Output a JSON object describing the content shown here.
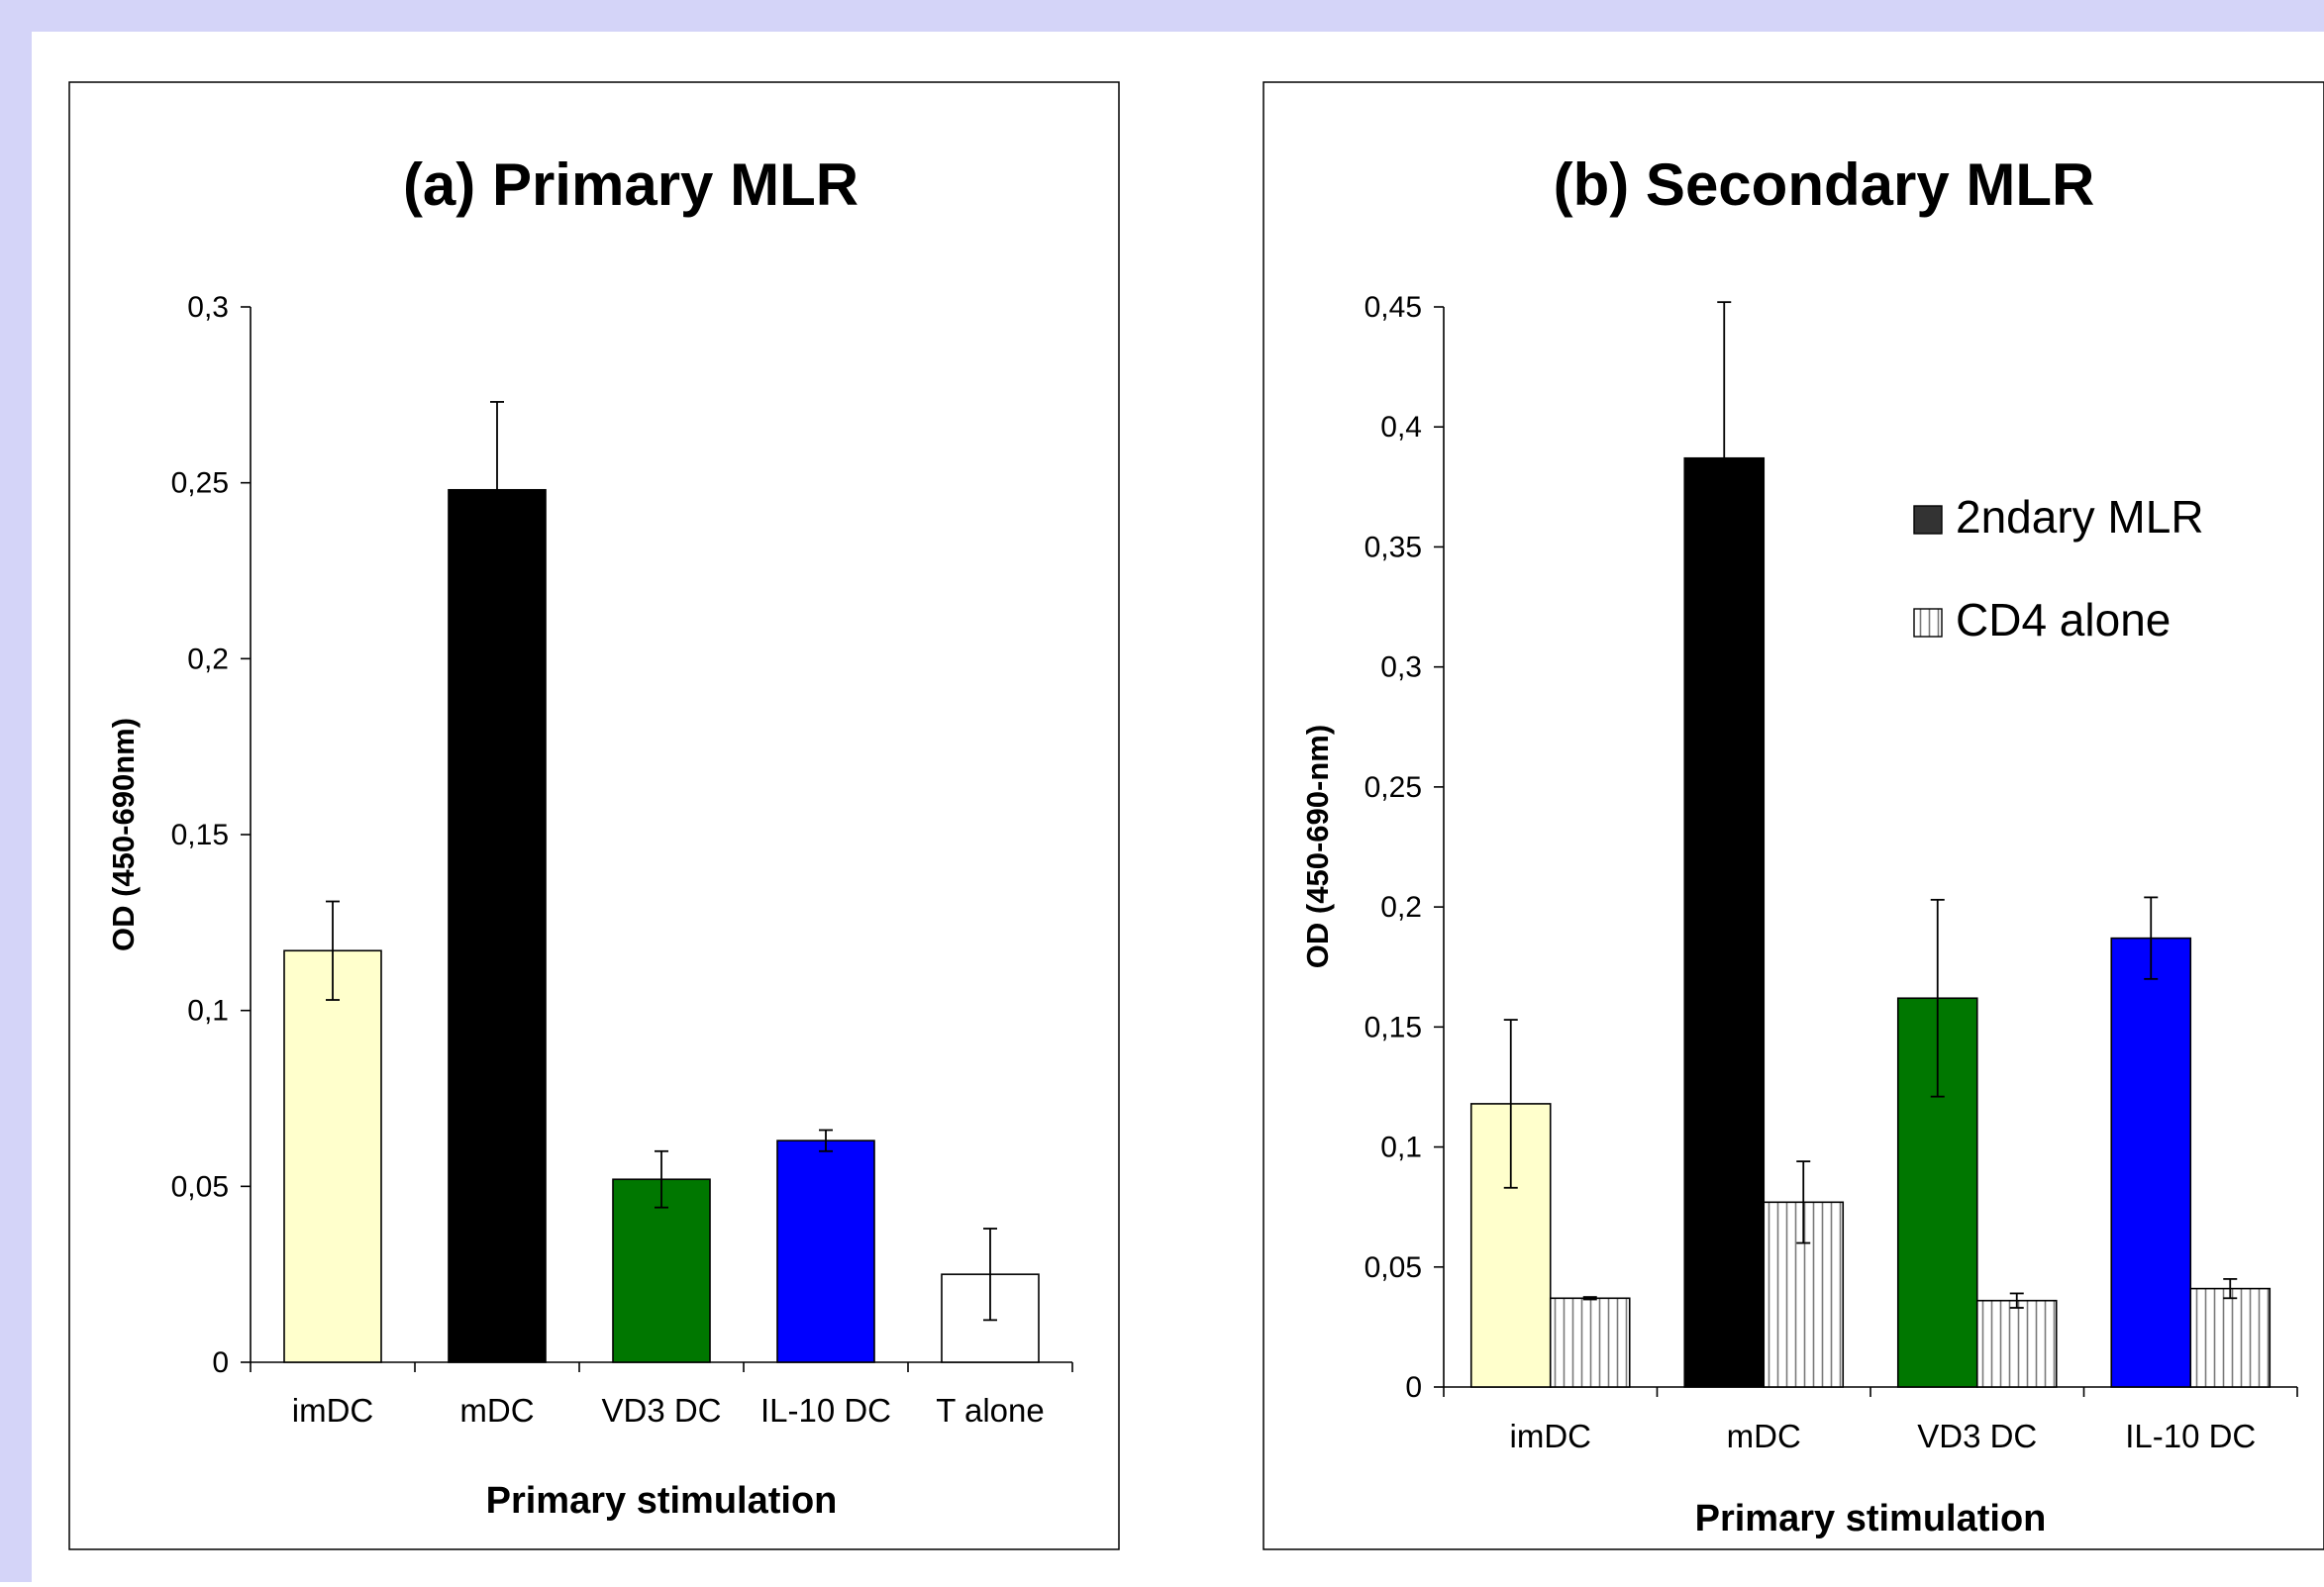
{
  "chart_data": [
    {
      "type": "bar",
      "title": "(a) Primary MLR",
      "xlabel": "Primary stimulation",
      "ylabel": "OD (450-690nm)",
      "categories": [
        "imDC",
        "mDC",
        "VD3 DC",
        "IL-10 DC",
        "T alone"
      ],
      "ylim": [
        0,
        0.3
      ],
      "yticks": [
        "0",
        "0,05",
        "0,1",
        "0,15",
        "0,2",
        "0,25",
        "0,3"
      ],
      "grid": false,
      "series": [
        {
          "values": [
            0.117,
            0.248,
            0.052,
            0.063,
            0.025
          ],
          "errors": [
            0.014,
            0.025,
            0.008,
            0.003,
            0.013
          ],
          "colors": [
            "#ffffcc",
            "#000000",
            "#007700",
            "#0000ff",
            "#ffffff"
          ]
        }
      ]
    },
    {
      "type": "bar",
      "title": "(b) Secondary MLR",
      "xlabel": "Primary stimulation",
      "ylabel": "OD (450-690-nm)",
      "categories": [
        "imDC",
        "mDC",
        "VD3 DC",
        "IL-10 DC"
      ],
      "ylim": [
        0,
        0.45
      ],
      "yticks": [
        "0",
        "0,05",
        "0,1",
        "0,15",
        "0,2",
        "0,25",
        "0,3",
        "0,35",
        "0,4",
        "0,45"
      ],
      "grid": false,
      "legend_position": "top-right",
      "series": [
        {
          "name": "2ndary MLR",
          "values": [
            0.118,
            0.387,
            0.162,
            0.187
          ],
          "errors": [
            0.035,
            0.065,
            0.041,
            0.017
          ],
          "colors": [
            "#ffffcc",
            "#000000",
            "#007700",
            "#0000ff"
          ],
          "legend_color": "#333333"
        },
        {
          "name": "CD4 alone",
          "values": [
            0.037,
            0.077,
            0.036,
            0.041
          ],
          "errors": [
            0.0005,
            0.017,
            0.003,
            0.004
          ],
          "pattern": "vertical-stripes"
        }
      ]
    }
  ]
}
